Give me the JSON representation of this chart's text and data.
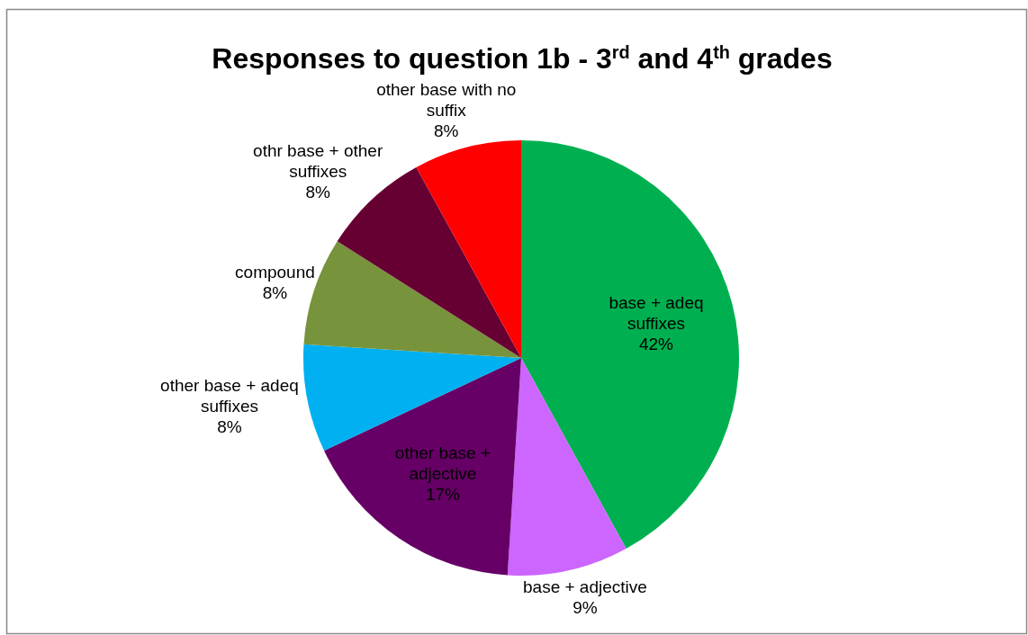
{
  "chart_data": {
    "type": "pie",
    "title": "Responses to question 1b - 3$^{rd}$ and 4$^{th}$ grades",
    "categories": [
      "base + adeq suffixes",
      "base + adjective",
      "other base + adjective",
      "other base + adeq suffixes",
      "compound",
      "othr base + other suffixes",
      "other base with no suffix"
    ],
    "values": [
      42,
      9,
      17,
      8,
      8,
      8,
      8
    ],
    "value_labels": [
      "42%",
      "9%",
      "17%",
      "8%",
      "8%",
      "8%",
      "8%"
    ],
    "colors": [
      "#00b050",
      "#cc66ff",
      "#660066",
      "#00b0f0",
      "#77933c",
      "#660033",
      "#ff0000"
    ]
  }
}
